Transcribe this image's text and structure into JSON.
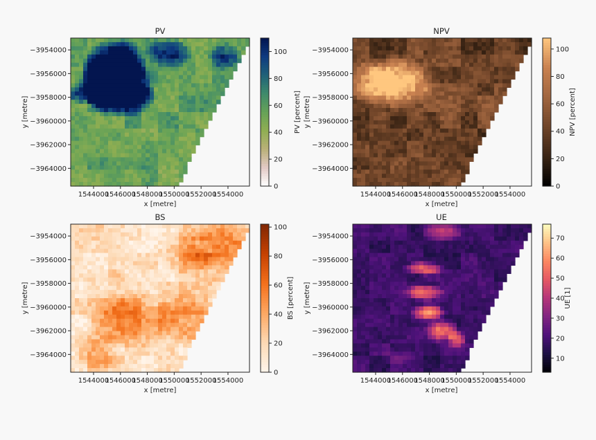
{
  "chart_data": [
    {
      "type": "heatmap",
      "title": "PV",
      "xlabel": "x [metre]",
      "ylabel": "y [metre]",
      "xticks": [
        1544000,
        1546000,
        1548000,
        1550000,
        1552000,
        1554000
      ],
      "yticks": [
        -3954000,
        -3956000,
        -3958000,
        -3960000,
        -3962000,
        -3964000
      ],
      "xlim": [
        1542300,
        1555600
      ],
      "ylim": [
        -3965500,
        -3953000
      ],
      "colorbar": {
        "label": "PV [percent]",
        "ticks": [
          0,
          20,
          40,
          60,
          80,
          100
        ],
        "range": [
          0,
          110
        ],
        "cmap": "gist_earth_r"
      },
      "colormap": [
        "#ffffff",
        "#e2c9c4",
        "#b9b078",
        "#8fae52",
        "#66a257",
        "#3f8a6b",
        "#1f6178",
        "#0e3a80",
        "#03154f"
      ],
      "texture": {
        "base": 0.5,
        "variance": 0.09,
        "blobs": [
          [
            0.55,
            0.38,
            0.2,
            0.3,
            0.08
          ],
          [
            0.7,
            0.3,
            0.25,
            0.22,
            0.18
          ],
          [
            0.78,
            0.4,
            0.28,
            0.2,
            0.14
          ],
          [
            0.88,
            0.25,
            0.2,
            0.14,
            0.24
          ],
          [
            0.92,
            0.2,
            0.3,
            0.12,
            0.2
          ],
          [
            0.45,
            0.1,
            0.55,
            0.14,
            0.1
          ],
          [
            0.35,
            0.12,
            0.85,
            0.1,
            0.1
          ]
        ]
      },
      "nodata_corner": "bottom-right"
    },
    {
      "type": "heatmap",
      "title": "NPV",
      "xlabel": "x [metre]",
      "ylabel": "y [metre]",
      "xticks": [
        1544000,
        1546000,
        1548000,
        1550000,
        1552000,
        1554000
      ],
      "yticks": [
        -3954000,
        -3956000,
        -3958000,
        -3960000,
        -3962000,
        -3964000
      ],
      "xlim": [
        1542300,
        1555600
      ],
      "ylim": [
        -3965500,
        -3953000
      ],
      "colorbar": {
        "label": "NPV [percent]",
        "ticks": [
          0,
          20,
          40,
          60,
          80,
          100
        ],
        "range": [
          0,
          108
        ],
        "cmap": "copper"
      },
      "colormap": [
        "#000000",
        "#3a2414",
        "#6f4428",
        "#a0653f",
        "#c98150",
        "#ffc77f"
      ],
      "texture": {
        "base": 0.38,
        "variance": 0.12,
        "blobs": [
          [
            0.05,
            0.42,
            0.45,
            0.45,
            0.2
          ],
          [
            0.7,
            0.3,
            0.2,
            0.28,
            0.18
          ],
          [
            0.05,
            0.45,
            0.15,
            0.25,
            0.1
          ]
        ]
      },
      "nodata_corner": "bottom-right"
    },
    {
      "type": "heatmap",
      "title": "BS",
      "xlabel": "x [metre]",
      "ylabel": "y [metre]",
      "xticks": [
        1544000,
        1546000,
        1548000,
        1550000,
        1552000,
        1554000
      ],
      "yticks": [
        -3954000,
        -3956000,
        -3958000,
        -3960000,
        -3962000,
        -3964000
      ],
      "xlim": [
        1542300,
        1555600
      ],
      "ylim": [
        -3965500,
        -3953000
      ],
      "colorbar": {
        "label": "BS [percent]",
        "ticks": [
          0,
          20,
          40,
          60,
          80,
          100
        ],
        "range": [
          0,
          102
        ],
        "cmap": "Oranges"
      },
      "colormap": [
        "#fff5eb",
        "#fdd9b4",
        "#fda762",
        "#f3701b",
        "#c54102",
        "#7f2704"
      ],
      "texture": {
        "base": 0.14,
        "variance": 0.12,
        "blobs": [
          [
            0.45,
            0.65,
            0.35,
            0.25,
            0.2
          ],
          [
            0.35,
            0.65,
            0.65,
            0.2,
            0.2
          ],
          [
            0.3,
            0.15,
            0.85,
            0.25,
            0.18
          ],
          [
            0.25,
            0.2,
            0.65,
            0.2,
            0.15
          ],
          [
            0.3,
            0.85,
            0.15,
            0.15,
            0.15
          ]
        ]
      },
      "nodata_corner": "bottom-right"
    },
    {
      "type": "heatmap",
      "title": "UE",
      "xlabel": "x [metre]",
      "ylabel": "y [metre]",
      "xticks": [
        1544000,
        1546000,
        1548000,
        1550000,
        1552000,
        1554000
      ],
      "yticks": [
        -3954000,
        -3956000,
        -3958000,
        -3960000,
        -3962000,
        -3964000
      ],
      "xlim": [
        1542300,
        1555600
      ],
      "ylim": [
        -3965500,
        -3953000
      ],
      "colorbar": {
        "label": "UE [1]",
        "ticks": [
          10,
          20,
          30,
          40,
          50,
          60,
          70
        ],
        "range": [
          3,
          77
        ],
        "cmap": "magma"
      },
      "colormap": [
        "#000004",
        "#1c1044",
        "#4f127b",
        "#812581",
        "#b5367a",
        "#e55964",
        "#fb8761",
        "#fec287",
        "#fcfdbf"
      ],
      "texture": {
        "base": 0.2,
        "variance": 0.05,
        "blobs": [
          [
            0.45,
            0.3,
            0.4,
            0.12,
            0.05
          ],
          [
            0.5,
            0.46,
            0.4,
            0.12,
            0.06
          ],
          [
            0.55,
            0.6,
            0.42,
            0.1,
            0.06
          ],
          [
            0.5,
            0.72,
            0.5,
            0.1,
            0.08
          ],
          [
            0.45,
            0.78,
            0.58,
            0.06,
            0.06
          ],
          [
            0.3,
            0.05,
            0.5,
            0.12,
            0.06
          ],
          [
            0.12,
            0.9,
            0.25,
            0.1,
            0.06
          ]
        ]
      },
      "nodata_corner": "bottom-right"
    }
  ]
}
